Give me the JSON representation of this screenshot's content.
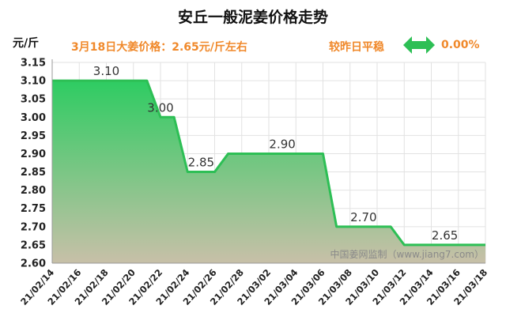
{
  "title": "安丘一般泥姜价格走势",
  "unit": "元/斤",
  "subtitle": "3月18日大姜价格：2.65元/斤左右",
  "comparison": {
    "label": "较昨日平稳",
    "value": "0.00%",
    "icon": "double-arrow-icon",
    "color": "#2dbf55"
  },
  "watermark": "中国姜网监制（www.jiang7.com）",
  "chart_data": {
    "type": "area",
    "ylim": [
      2.6,
      3.15
    ],
    "yticks": [
      "3.15",
      "3.10",
      "3.05",
      "3.00",
      "2.95",
      "2.90",
      "2.85",
      "2.80",
      "2.75",
      "2.70",
      "2.65",
      "2.60"
    ],
    "xticks": [
      "21/02/14",
      "21/02/16",
      "21/02/18",
      "21/02/20",
      "21/02/22",
      "21/02/24",
      "21/02/26",
      "21/02/28",
      "21/03/02",
      "21/03/04",
      "21/03/06",
      "21/03/08",
      "21/03/10",
      "21/03/12",
      "21/03/14",
      "21/03/16",
      "21/03/18"
    ],
    "x": [
      "21/02/14",
      "21/02/15",
      "21/02/16",
      "21/02/17",
      "21/02/18",
      "21/02/19",
      "21/02/20",
      "21/02/21",
      "21/02/22",
      "21/02/23",
      "21/02/24",
      "21/02/25",
      "21/02/26",
      "21/02/27",
      "21/02/28",
      "21/03/01",
      "21/03/02",
      "21/03/03",
      "21/03/04",
      "21/03/05",
      "21/03/06",
      "21/03/07",
      "21/03/08",
      "21/03/09",
      "21/03/10",
      "21/03/11",
      "21/03/12",
      "21/03/13",
      "21/03/14",
      "21/03/15",
      "21/03/16",
      "21/03/17",
      "21/03/18"
    ],
    "values": [
      3.1,
      3.1,
      3.1,
      3.1,
      3.1,
      3.1,
      3.1,
      3.1,
      3.0,
      3.0,
      2.85,
      2.85,
      2.85,
      2.9,
      2.9,
      2.9,
      2.9,
      2.9,
      2.9,
      2.9,
      2.9,
      2.7,
      2.7,
      2.7,
      2.7,
      2.7,
      2.65,
      2.65,
      2.65,
      2.65,
      2.65,
      2.65,
      2.65
    ],
    "data_labels": [
      {
        "x": "21/02/18",
        "y": 3.1,
        "text": "3.10"
      },
      {
        "x": "21/02/22",
        "y": 3.0,
        "text": "3.00"
      },
      {
        "x": "21/02/25",
        "y": 2.85,
        "text": "2.85"
      },
      {
        "x": "21/03/03",
        "y": 2.9,
        "text": "2.90"
      },
      {
        "x": "21/03/09",
        "y": 2.7,
        "text": "2.70"
      },
      {
        "x": "21/03/15",
        "y": 2.65,
        "text": "2.65"
      }
    ],
    "grid": true,
    "line_color": "#2dbf55",
    "fill_top_color": "#2ecc62",
    "fill_bottom_color": "#c8c0a8"
  }
}
